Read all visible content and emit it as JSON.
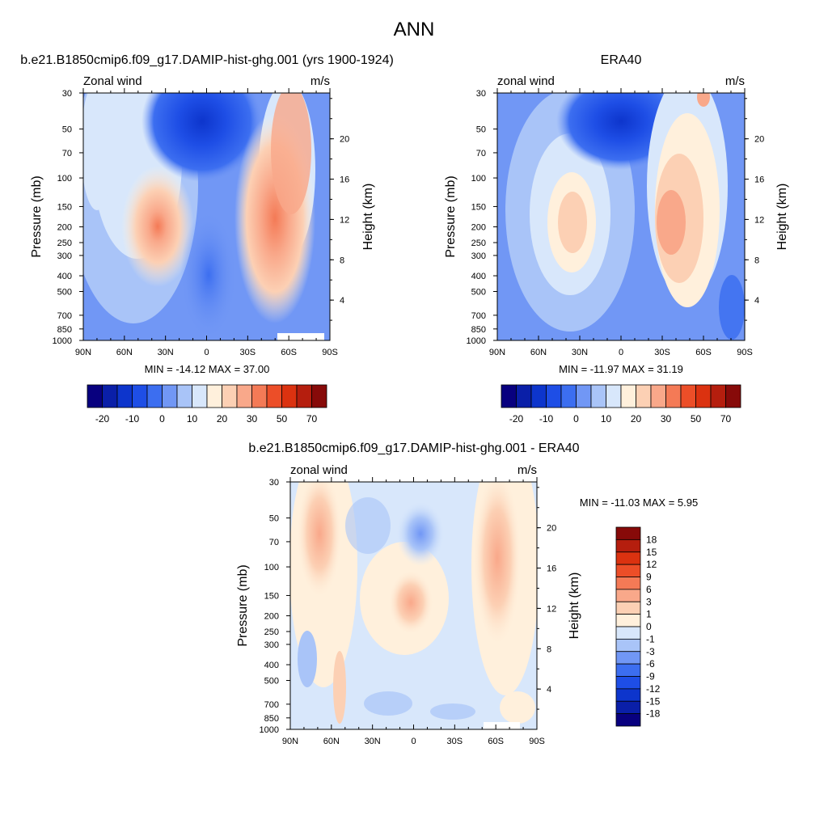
{
  "page_title": "ANN",
  "chart_data": [
    {
      "type": "heatmap",
      "title": "b.e21.B1850cmip6.f09_g17.DAMIP-hist-ghg.001 (yrs 1900-1924)",
      "left_label": "Zonal wind",
      "units": "m/s",
      "ylabel": "Pressure (mb)",
      "y2label": "Height (km)",
      "x_ticks": [
        "90N",
        "60N",
        "30N",
        "0",
        "30S",
        "60S",
        "90S"
      ],
      "y_ticks": [
        "30",
        "50",
        "70",
        "100",
        "150",
        "200",
        "250",
        "300",
        "400",
        "500",
        "700",
        "850",
        "1000"
      ],
      "y2_ticks": [
        "20",
        "16",
        "12",
        "8",
        "4"
      ],
      "stats": "MIN = -14.12  MAX =  37.00",
      "colorbar": {
        "orientation": "horizontal",
        "labels": [
          "-20",
          "-10",
          "0",
          "10",
          "20",
          "30",
          "50",
          "70"
        ],
        "colors": [
          "#08007f",
          "#0a1fa8",
          "#0d35cc",
          "#1e4ee6",
          "#3c6ef0",
          "#7197f5",
          "#a9c4f8",
          "#d8e7fb",
          "#fff0dc",
          "#fcd0b4",
          "#f9a88a",
          "#f47a56",
          "#ec4e28",
          "#db3210",
          "#b51e0e",
          "#870a09"
        ]
      },
      "features": {
        "northern_jet_core": {
          "lat": 35,
          "pressure": 200,
          "value": 25
        },
        "southern_jet_core": {
          "lat": -45,
          "pressure": 200,
          "value": 37
        },
        "tropical_easterlies": {
          "lat": 5,
          "pressure": 30,
          "value": -14
        }
      }
    },
    {
      "type": "heatmap",
      "title": "ERA40",
      "left_label": "zonal wind",
      "units": "m/s",
      "ylabel": "Pressure (mb)",
      "y2label": "Height (km)",
      "x_ticks": [
        "90N",
        "60N",
        "30N",
        "0",
        "30S",
        "60S",
        "90S"
      ],
      "y_ticks": [
        "30",
        "50",
        "70",
        "100",
        "150",
        "200",
        "250",
        "300",
        "400",
        "500",
        "700",
        "850",
        "1000"
      ],
      "y2_ticks": [
        "20",
        "16",
        "12",
        "8",
        "4"
      ],
      "stats": "MIN = -11.97  MAX =  31.19",
      "colorbar": {
        "orientation": "horizontal",
        "labels": [
          "-20",
          "-10",
          "0",
          "10",
          "20",
          "30",
          "50",
          "70"
        ],
        "colors": [
          "#08007f",
          "#0a1fa8",
          "#0d35cc",
          "#1e4ee6",
          "#3c6ef0",
          "#7197f5",
          "#a9c4f8",
          "#d8e7fb",
          "#fff0dc",
          "#fcd0b4",
          "#f9a88a",
          "#f47a56",
          "#ec4e28",
          "#db3210",
          "#b51e0e",
          "#870a09"
        ]
      },
      "features": {
        "northern_jet_core": {
          "lat": 35,
          "pressure": 200,
          "value": 23
        },
        "southern_jet_core": {
          "lat": -40,
          "pressure": 200,
          "value": 31
        },
        "tropical_easterlies": {
          "lat": 10,
          "pressure": 50,
          "value": -12
        }
      }
    },
    {
      "type": "heatmap",
      "title": "b.e21.B1850cmip6.f09_g17.DAMIP-hist-ghg.001 - ERA40",
      "left_label": "zonal wind",
      "units": "m/s",
      "ylabel": "Pressure (mb)",
      "y2label": "Height (km)",
      "x_ticks": [
        "90N",
        "60N",
        "30N",
        "0",
        "30S",
        "60S",
        "90S"
      ],
      "y_ticks": [
        "30",
        "50",
        "70",
        "100",
        "150",
        "200",
        "250",
        "300",
        "400",
        "500",
        "700",
        "850",
        "1000"
      ],
      "y2_ticks": [
        "20",
        "16",
        "12",
        "8",
        "4"
      ],
      "stats": "MIN = -11.03  MAX =   5.95",
      "colorbar": {
        "orientation": "vertical",
        "labels": [
          "18",
          "15",
          "12",
          "9",
          "6",
          "3",
          "1",
          "0",
          "-1",
          "-3",
          "-6",
          "-9",
          "-12",
          "-15",
          "-18"
        ],
        "colors": [
          "#870a09",
          "#b51e0e",
          "#db3210",
          "#ec4e28",
          "#f47a56",
          "#f9a88a",
          "#fcd0b4",
          "#fff0dc",
          "#d8e7fb",
          "#a9c4f8",
          "#7197f5",
          "#3c6ef0",
          "#1e4ee6",
          "#0d35cc",
          "#0a1fa8",
          "#08007f"
        ]
      },
      "features": {
        "positive_bands": [
          {
            "lat": 65,
            "value": 6
          },
          {
            "lat": 0,
            "value": 6
          },
          {
            "lat": -50,
            "value": 6
          }
        ],
        "negative_cells": [
          {
            "lat": 5,
            "pressure": 70,
            "value": -6
          }
        ]
      }
    }
  ]
}
